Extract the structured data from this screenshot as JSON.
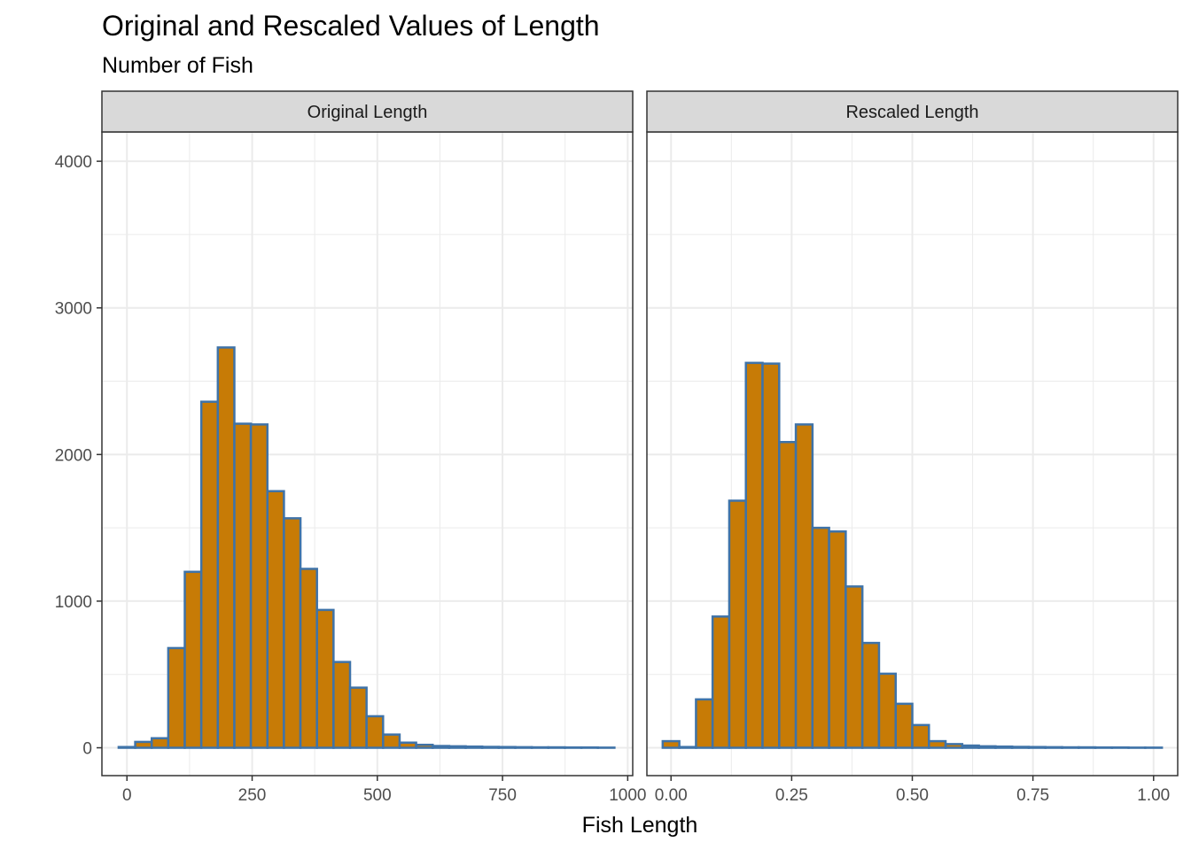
{
  "title": "Original and Rescaled Values of Length",
  "subtitle": "Number of Fish",
  "colors": {
    "bar_fill": "#C77B06",
    "bar_outline": "#3F73A8",
    "strip_fill": "#D9D9D9",
    "grid": "#EBEBEB",
    "panel_border": "#333333"
  },
  "chart_data": {
    "type": "bar",
    "xlabel": "Fish Length",
    "ylabel": "",
    "ylim": [
      -190,
      4200
    ],
    "y_ticks": [
      0,
      1000,
      2000,
      3000,
      4000
    ],
    "y_tick_labels": [
      "0",
      "1000",
      "2000",
      "3000",
      "4000"
    ],
    "grid": true,
    "panels": [
      {
        "label": "Original Length",
        "xlim": [
          -50,
          1010
        ],
        "x_ticks": [
          0,
          250,
          500,
          750,
          1000
        ],
        "x_tick_labels": [
          "0",
          "250",
          "500",
          "750",
          "1000"
        ],
        "bin_width": 33,
        "bin_centers": [
          0,
          33,
          66,
          99,
          132,
          165,
          198,
          231,
          264,
          297,
          330,
          363,
          396,
          429,
          462,
          495,
          528,
          561,
          594,
          627,
          660,
          693,
          726,
          759,
          792,
          825,
          858,
          891,
          924,
          957
        ],
        "values": [
          5,
          40,
          65,
          680,
          1200,
          2360,
          2730,
          2210,
          2205,
          1750,
          1565,
          1220,
          940,
          585,
          410,
          215,
          90,
          35,
          20,
          12,
          10,
          8,
          6,
          5,
          4,
          3,
          3,
          2,
          2,
          1
        ]
      },
      {
        "label": "Rescaled Length",
        "xlim": [
          -0.05,
          1.05
        ],
        "x_ticks": [
          0,
          0.25,
          0.5,
          0.75,
          1
        ],
        "x_tick_labels": [
          "0.00",
          "0.25",
          "0.50",
          "0.75",
          "1.00"
        ],
        "bin_width": 0.0345,
        "bin_centers": [
          0,
          0.0345,
          0.069,
          0.1034,
          0.1379,
          0.1724,
          0.2069,
          0.2414,
          0.2759,
          0.3103,
          0.3448,
          0.3793,
          0.4138,
          0.4483,
          0.4828,
          0.5172,
          0.5517,
          0.5862,
          0.6207,
          0.6552,
          0.6897,
          0.7241,
          0.7586,
          0.7931,
          0.8276,
          0.8621,
          0.8966,
          0.931,
          0.9655,
          1.0
        ],
        "values": [
          45,
          5,
          330,
          895,
          1685,
          2625,
          2620,
          2085,
          2205,
          1500,
          1475,
          1100,
          715,
          505,
          300,
          155,
          45,
          25,
          15,
          10,
          8,
          6,
          5,
          4,
          3,
          3,
          2,
          2,
          1,
          1
        ]
      }
    ]
  }
}
